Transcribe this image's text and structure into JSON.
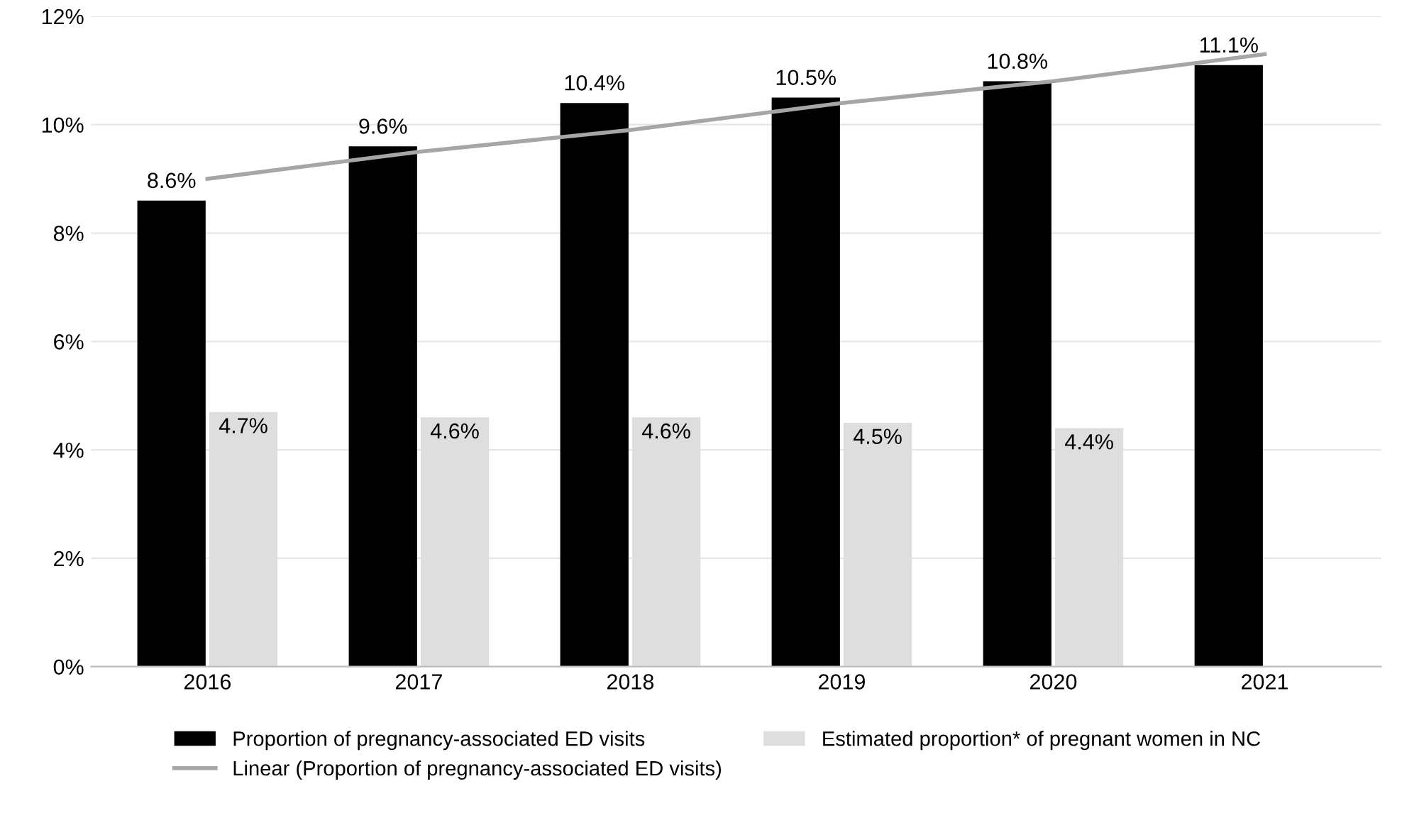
{
  "chart_data": {
    "type": "bar",
    "categories": [
      "2016",
      "2017",
      "2018",
      "2019",
      "2020",
      "2021"
    ],
    "series": [
      {
        "name": "Proportion of pregnancy-associated ED visits",
        "color": "#000000",
        "values": [
          8.6,
          9.6,
          10.4,
          10.5,
          10.8,
          11.1
        ],
        "value_labels": [
          "8.6%",
          "9.6%",
          "10.4%",
          "10.5%",
          "10.8%",
          "11.1%"
        ]
      },
      {
        "name": "Estimated proportion* of pregnant women in NC",
        "color": "#dedede",
        "values": [
          4.7,
          4.6,
          4.6,
          4.5,
          4.4,
          null
        ],
        "value_labels": [
          "4.7%",
          "4.6%",
          "4.6%",
          "4.5%",
          "4.4%",
          null
        ]
      },
      {
        "name": "Linear (Proportion of pregnancy-associated ED visits)",
        "type": "line",
        "color": "#a6a6a6",
        "values": [
          9.0,
          9.5,
          9.9,
          10.4,
          10.8,
          11.3
        ]
      }
    ],
    "ylim": [
      0,
      12
    ],
    "yticks": [
      {
        "value": 0,
        "label": "0%"
      },
      {
        "value": 2,
        "label": "2%"
      },
      {
        "value": 4,
        "label": "4%"
      },
      {
        "value": 6,
        "label": "6%"
      },
      {
        "value": 8,
        "label": "8%"
      },
      {
        "value": 10,
        "label": "10%"
      },
      {
        "value": 12,
        "label": "12%"
      }
    ],
    "grid": "y",
    "legend": "bottom"
  }
}
